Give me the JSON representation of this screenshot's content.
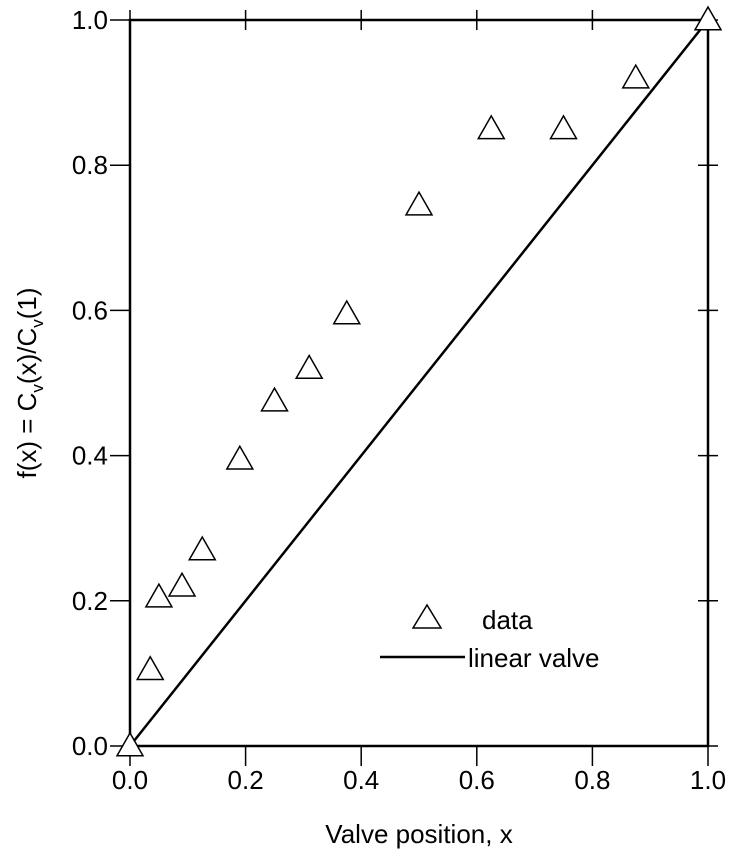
{
  "chart_data": {
    "type": "scatter",
    "xlabel": "Valve position, x",
    "ylabel": {
      "prefix": "f(x) = C",
      "sub1": "v",
      "middle": "(x)/C",
      "sub2": "v",
      "suffix": "(1)"
    },
    "xlim": [
      0,
      1
    ],
    "ylim": [
      0,
      1
    ],
    "x_ticks": [
      0,
      0.2,
      0.4,
      0.6,
      0.8,
      1.0
    ],
    "x_tick_labels": [
      "0.0",
      "0.2",
      "0.4",
      "0.6",
      "0.8",
      "1.0"
    ],
    "y_ticks": [
      0,
      0.2,
      0.4,
      0.6,
      0.8,
      1.0
    ],
    "y_tick_labels": [
      "0.0",
      "0.2",
      "0.4",
      "0.6",
      "0.8",
      "1.0"
    ],
    "grid": false,
    "legend_position": "lower-right",
    "series": [
      {
        "name": "data",
        "marker": "open-triangle",
        "points": [
          {
            "x": 0.0,
            "y": 0.0
          },
          {
            "x": 0.035,
            "y": 0.105
          },
          {
            "x": 0.05,
            "y": 0.205
          },
          {
            "x": 0.09,
            "y": 0.22
          },
          {
            "x": 0.125,
            "y": 0.27
          },
          {
            "x": 0.19,
            "y": 0.395
          },
          {
            "x": 0.25,
            "y": 0.475
          },
          {
            "x": 0.31,
            "y": 0.52
          },
          {
            "x": 0.375,
            "y": 0.595
          },
          {
            "x": 0.5,
            "y": 0.745
          },
          {
            "x": 0.625,
            "y": 0.85
          },
          {
            "x": 0.75,
            "y": 0.85
          },
          {
            "x": 0.875,
            "y": 0.92
          },
          {
            "x": 1.0,
            "y": 1.0
          }
        ]
      },
      {
        "name": "linear valve",
        "style": "line",
        "color": "#000000",
        "points": [
          {
            "x": 0.0,
            "y": 0.0
          },
          {
            "x": 1.0,
            "y": 1.0
          }
        ]
      }
    ]
  }
}
